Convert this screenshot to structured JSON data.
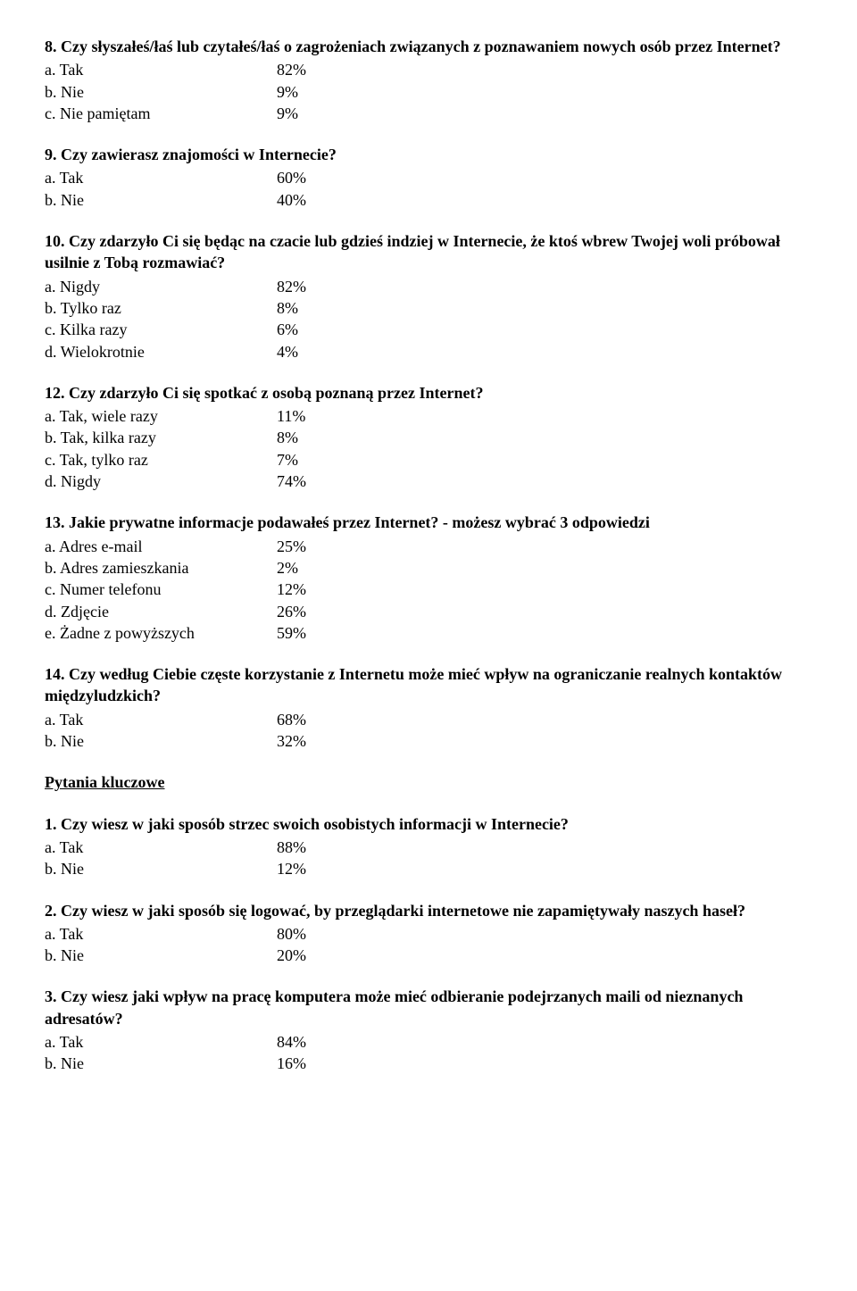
{
  "questions_main": [
    {
      "title": "8. Czy słyszałeś/łaś lub czytałeś/łaś o zagrożeniach związanych z poznawaniem nowych osób przez Internet?",
      "answers": [
        {
          "label": "a. Tak",
          "value": "82%"
        },
        {
          "label": "b. Nie",
          "value": "9%"
        },
        {
          "label": "c. Nie pamiętam",
          "value": "9%"
        }
      ]
    },
    {
      "title": "9. Czy zawierasz znajomości w Internecie?",
      "answers": [
        {
          "label": "a. Tak",
          "value": "60%"
        },
        {
          "label": "b. Nie",
          "value": "40%"
        }
      ]
    },
    {
      "title": "10. Czy zdarzyło Ci się będąc na czacie lub gdzieś indziej w Internecie, że ktoś wbrew Twojej woli próbował usilnie z Tobą rozmawiać?",
      "answers": [
        {
          "label": "a. Nigdy",
          "value": "82%"
        },
        {
          "label": "b. Tylko raz",
          "value": "8%"
        },
        {
          "label": "c. Kilka razy",
          "value": "6%"
        },
        {
          "label": "d. Wielokrotnie",
          "value": "4%"
        }
      ]
    },
    {
      "title": "12. Czy zdarzyło Ci się spotkać z osobą poznaną przez Internet?",
      "answers": [
        {
          "label": "a. Tak, wiele razy",
          "value": "11%"
        },
        {
          "label": "b. Tak, kilka razy",
          "value": "8%"
        },
        {
          "label": "c. Tak, tylko raz",
          "value": "7%"
        },
        {
          "label": "d. Nigdy",
          "value": "74%"
        }
      ]
    },
    {
      "title": "13. Jakie prywatne informacje podawałeś przez Internet? - możesz wybrać 3 odpowiedzi",
      "answers": [
        {
          "label": "a. Adres e-mail",
          "value": "25%"
        },
        {
          "label": "b. Adres zamieszkania",
          "value": "2%"
        },
        {
          "label": "c. Numer telefonu",
          "value": "12%"
        },
        {
          "label": "d. Zdjęcie",
          "value": "26%"
        },
        {
          "label": "e. Żadne z powyższych",
          "value": "59%"
        }
      ]
    },
    {
      "title": "14. Czy według Ciebie częste korzystanie z Internetu może mieć wpływ na ograniczanie realnych kontaktów międzyludzkich?",
      "answers": [
        {
          "label": "a. Tak",
          "value": "68%"
        },
        {
          "label": "b. Nie",
          "value": "32%"
        }
      ]
    }
  ],
  "section_heading": "Pytania kluczowe",
  "questions_key": [
    {
      "title": "1. Czy wiesz w jaki sposób strzec swoich osobistych informacji w Internecie?",
      "answers": [
        {
          "label": "a. Tak",
          "value": "88%"
        },
        {
          "label": "b. Nie",
          "value": "12%"
        }
      ]
    },
    {
      "title": "2. Czy wiesz w jaki sposób się logować, by przeglądarki internetowe nie zapamiętywały naszych haseł?",
      "answers": [
        {
          "label": "a. Tak",
          "value": "80%"
        },
        {
          "label": "b. Nie",
          "value": "20%"
        }
      ]
    },
    {
      "title": "3. Czy wiesz jaki wpływ na pracę komputera może mieć odbieranie podejrzanych maili od nieznanych adresatów?",
      "answers": [
        {
          "label": "a. Tak",
          "value": "84%"
        },
        {
          "label": "b. Nie",
          "value": "16%"
        }
      ]
    }
  ]
}
